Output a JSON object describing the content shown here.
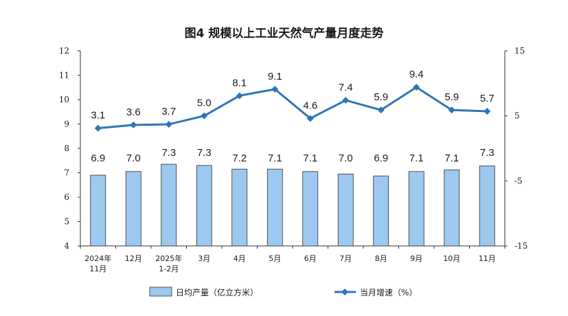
{
  "title": "图4  规模以上工业天然气产量月度走势",
  "colors": {
    "bar_fill": "#9dc8ef",
    "bar_stroke": "#2d2d2d",
    "line": "#2e75b6",
    "axis": "#333333"
  },
  "chart_data": {
    "type": "bar",
    "title": "图4  规模以上工业天然气产量月度走势",
    "categories": [
      [
        "2024年",
        "11月"
      ],
      [
        "12月"
      ],
      [
        "2025年",
        "1-2月"
      ],
      [
        "3月"
      ],
      [
        "4月"
      ],
      [
        "5月"
      ],
      [
        "6月"
      ],
      [
        "7月"
      ],
      [
        "8月"
      ],
      [
        "9月"
      ],
      [
        "10月"
      ],
      [
        "11月"
      ]
    ],
    "series": [
      {
        "name": "日均产量（亿立方米）",
        "type": "bar",
        "axis": "left",
        "values": [
          6.9,
          7.0,
          7.3,
          7.3,
          7.2,
          7.1,
          7.1,
          7.0,
          6.9,
          7.1,
          7.1,
          7.3
        ],
        "plotted": [
          6.9,
          7.05,
          7.35,
          7.3,
          7.15,
          7.15,
          7.05,
          6.95,
          6.87,
          7.05,
          7.12,
          7.28
        ]
      },
      {
        "name": "当月增速（%）",
        "type": "line",
        "axis": "right",
        "values": [
          3.1,
          3.6,
          3.7,
          5.0,
          8.1,
          9.1,
          4.6,
          7.4,
          5.9,
          9.4,
          5.9,
          5.7
        ]
      }
    ],
    "y_left": {
      "ylim": [
        4,
        12
      ],
      "ticks": [
        "4",
        "5",
        "6",
        "7",
        "8",
        "9",
        "10",
        "11",
        "12"
      ]
    },
    "y_right": {
      "ylim": [
        -15,
        15
      ],
      "ticks": [
        "-15",
        "-5",
        "5",
        "15"
      ]
    },
    "grid": false,
    "legend_position": "bottom"
  }
}
